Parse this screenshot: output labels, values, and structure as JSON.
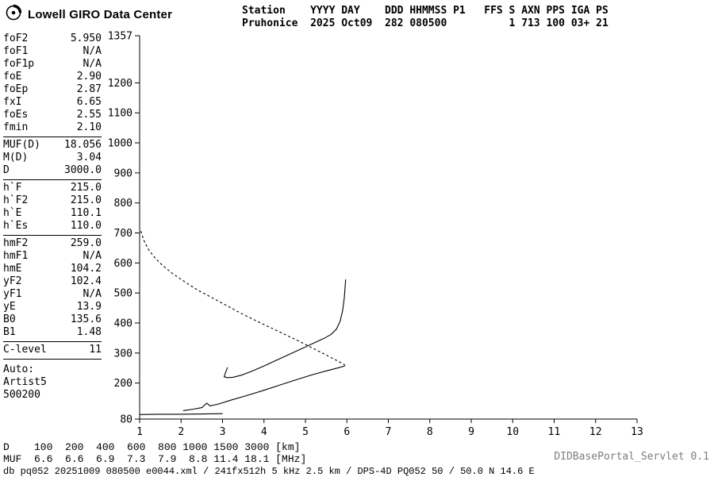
{
  "branding": {
    "title": "Lowell GIRO Data Center"
  },
  "header": {
    "line1": "Station    YYYY DAY    DDD HHMMSS P1   FFS S AXN PPS IGA PS",
    "line2": "Pruhonice  2025 Oct09  282 080500          1 713 100 03+ 21"
  },
  "parameters": {
    "groups": [
      {
        "rows": [
          [
            "foF2",
            "5.950"
          ],
          [
            "foF1",
            "N/A"
          ],
          [
            "foF1p",
            "N/A"
          ],
          [
            "foE",
            "2.90"
          ],
          [
            "foEp",
            "2.87"
          ],
          [
            "fxI",
            "6.65"
          ],
          [
            "foEs",
            "2.55"
          ],
          [
            "fmin",
            "2.10"
          ]
        ]
      },
      {
        "rows": [
          [
            "MUF(D)",
            "18.056"
          ],
          [
            "M(D)",
            "3.04"
          ],
          [
            "D",
            "3000.0"
          ]
        ]
      },
      {
        "rows": [
          [
            "h`F",
            "215.0"
          ],
          [
            "h`F2",
            "215.0"
          ],
          [
            "h`E",
            "110.1"
          ],
          [
            "h`Es",
            "110.0"
          ]
        ]
      },
      {
        "rows": [
          [
            "hmF2",
            "259.0"
          ],
          [
            "hmF1",
            "N/A"
          ],
          [
            "hmE",
            "104.2"
          ],
          [
            "yF2",
            "102.4"
          ],
          [
            "yF1",
            "N/A"
          ],
          [
            "yE",
            "13.9"
          ],
          [
            "B0",
            "135.6"
          ],
          [
            "B1",
            "1.48"
          ]
        ]
      },
      {
        "rows": [
          [
            "C-level",
            "11"
          ]
        ]
      },
      {
        "rows": [
          [
            "Auto:",
            ""
          ],
          [
            "Artist5",
            ""
          ],
          [
            "500200",
            ""
          ]
        ]
      }
    ]
  },
  "chart_data": {
    "type": "line",
    "title": "",
    "xlabel": "[MHz]",
    "ylabel": "[km]",
    "xlim": [
      1,
      13
    ],
    "ylim": [
      80,
      1357
    ],
    "grid": false,
    "legend": "none",
    "x_ticks": [
      1,
      2,
      3,
      4,
      5,
      6,
      7,
      8,
      9,
      10,
      11,
      12,
      13
    ],
    "y_ticks": [
      80,
      200,
      300,
      400,
      500,
      600,
      700,
      800,
      900,
      1000,
      1100,
      1200,
      1357
    ],
    "series": [
      {
        "name": "profile-topside-dashed",
        "style": "dashed",
        "points": [
          [
            1.03,
            706
          ],
          [
            1.1,
            676
          ],
          [
            1.2,
            648
          ],
          [
            1.35,
            620
          ],
          [
            1.55,
            592
          ],
          [
            1.8,
            564
          ],
          [
            2.1,
            536
          ],
          [
            2.4,
            510
          ],
          [
            2.75,
            484
          ],
          [
            3.1,
            458
          ],
          [
            3.45,
            432
          ],
          [
            3.8,
            408
          ],
          [
            4.15,
            385
          ],
          [
            4.5,
            362
          ],
          [
            4.85,
            339
          ],
          [
            5.15,
            318
          ],
          [
            5.45,
            297
          ],
          [
            5.7,
            279
          ],
          [
            5.88,
            266
          ],
          [
            5.97,
            258
          ]
        ]
      },
      {
        "name": "profile-bottomside",
        "style": "solid",
        "points": [
          [
            2.05,
            108
          ],
          [
            2.3,
            113
          ],
          [
            2.5,
            118
          ],
          [
            2.62,
            133
          ],
          [
            2.7,
            124
          ],
          [
            2.9,
            130
          ],
          [
            3.2,
            143
          ],
          [
            3.6,
            159
          ],
          [
            4.0,
            176
          ],
          [
            4.4,
            194
          ],
          [
            4.8,
            212
          ],
          [
            5.2,
            229
          ],
          [
            5.55,
            242
          ],
          [
            5.8,
            251
          ],
          [
            5.95,
            257
          ]
        ]
      },
      {
        "name": "es-layer-trace",
        "style": "solid",
        "points": [
          [
            1.0,
            95
          ],
          [
            1.5,
            96
          ],
          [
            2.0,
            96
          ],
          [
            2.5,
            97
          ],
          [
            3.0,
            98
          ]
        ]
      },
      {
        "name": "f-layer-trace",
        "style": "solid",
        "points": [
          [
            3.12,
            252
          ],
          [
            3.06,
            230
          ],
          [
            3.04,
            221
          ],
          [
            3.12,
            218
          ],
          [
            3.25,
            219
          ],
          [
            3.45,
            226
          ],
          [
            3.7,
            239
          ],
          [
            4.0,
            257
          ],
          [
            4.3,
            276
          ],
          [
            4.6,
            295
          ],
          [
            4.9,
            314
          ],
          [
            5.2,
            333
          ],
          [
            5.45,
            349
          ],
          [
            5.62,
            362
          ],
          [
            5.75,
            380
          ],
          [
            5.84,
            407
          ],
          [
            5.9,
            443
          ],
          [
            5.94,
            487
          ],
          [
            5.97,
            545
          ]
        ]
      }
    ]
  },
  "footer": {
    "d_line": "D    100  200  400  600  800 1000 1500 3000 [km]",
    "muf_line": "MUF  6.6  6.6  6.9  7.3  7.9  8.8 11.4 18.1 [MHz]",
    "status_line": "db pq052 20251009 080500 e0044.xml / 241fx512h 5 kHz 2.5 km / DPS-4D PQ052 50 / 50.0 N 14.6 E",
    "servlet_label": "DIDBasePortal_Servlet 0.1"
  }
}
